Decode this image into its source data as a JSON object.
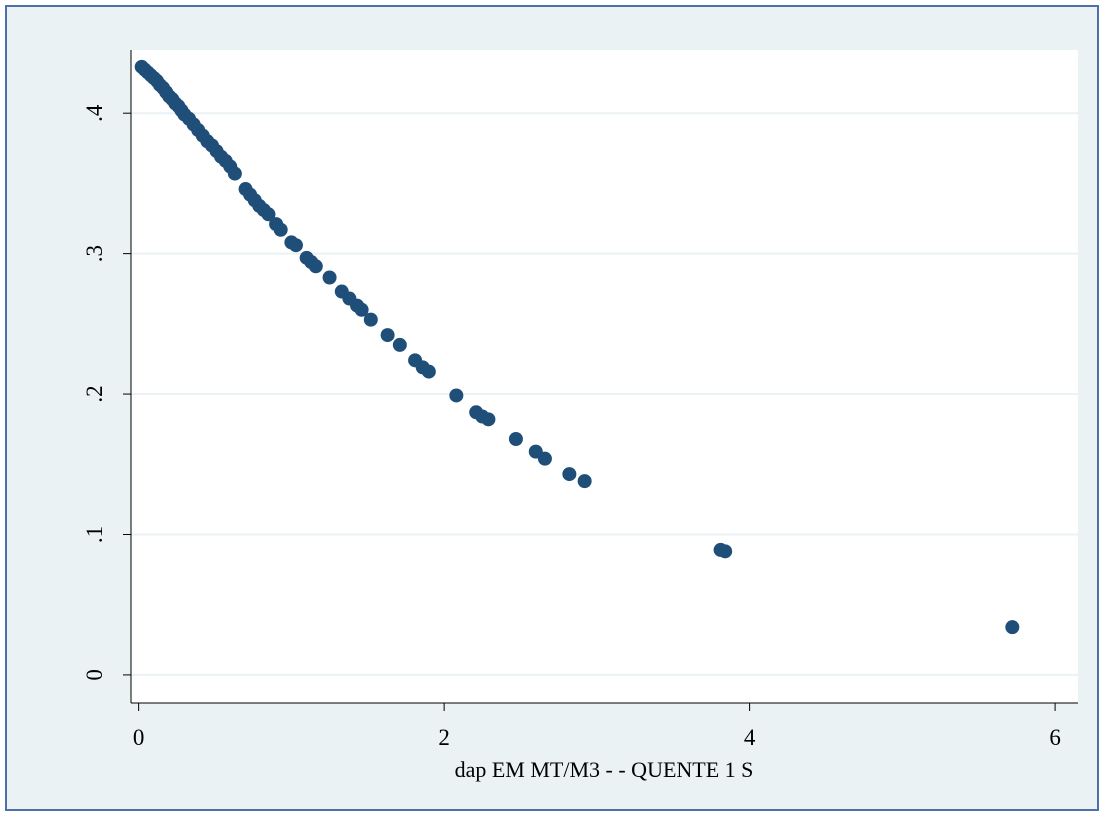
{
  "chart_data": {
    "type": "scatter",
    "title": "",
    "xlabel": "dap EM MT/M3 - - QUENTE 1 S",
    "ylabel": "",
    "xlim": [
      -0.05,
      6.15
    ],
    "ylim": [
      -0.02,
      0.445
    ],
    "x_ticks": [
      0,
      2,
      4,
      6
    ],
    "x_tick_labels": [
      "0",
      "2",
      "4",
      "6"
    ],
    "y_ticks": [
      0,
      0.1,
      0.2,
      0.3,
      0.4
    ],
    "y_tick_labels": [
      "0",
      ".1",
      ".2",
      ".3",
      ".4"
    ],
    "grid": true,
    "colors": {
      "marker": "#1f4e79",
      "grid": "#eaf2f3",
      "plot_bg": "#ffffff",
      "frame_bg": "#eaf2f3",
      "border": "#4f6fa8"
    },
    "series": [
      {
        "points": [
          [
            0.02,
            0.433
          ],
          [
            0.04,
            0.431
          ],
          [
            0.06,
            0.429
          ],
          [
            0.08,
            0.427
          ],
          [
            0.1,
            0.425
          ],
          [
            0.12,
            0.423
          ],
          [
            0.14,
            0.42
          ],
          [
            0.16,
            0.418
          ],
          [
            0.18,
            0.415
          ],
          [
            0.2,
            0.412
          ],
          [
            0.22,
            0.41
          ],
          [
            0.24,
            0.407
          ],
          [
            0.26,
            0.405
          ],
          [
            0.28,
            0.402
          ],
          [
            0.3,
            0.399
          ],
          [
            0.33,
            0.396
          ],
          [
            0.36,
            0.392
          ],
          [
            0.39,
            0.388
          ],
          [
            0.42,
            0.384
          ],
          [
            0.45,
            0.38
          ],
          [
            0.48,
            0.377
          ],
          [
            0.51,
            0.373
          ],
          [
            0.54,
            0.369
          ],
          [
            0.57,
            0.366
          ],
          [
            0.6,
            0.362
          ],
          [
            0.63,
            0.357
          ],
          [
            0.7,
            0.346
          ],
          [
            0.73,
            0.342
          ],
          [
            0.76,
            0.338
          ],
          [
            0.79,
            0.334
          ],
          [
            0.82,
            0.331
          ],
          [
            0.85,
            0.328
          ],
          [
            0.9,
            0.321
          ],
          [
            0.93,
            0.317
          ],
          [
            1.0,
            0.308
          ],
          [
            1.03,
            0.306
          ],
          [
            1.1,
            0.297
          ],
          [
            1.13,
            0.294
          ],
          [
            1.16,
            0.291
          ],
          [
            1.25,
            0.283
          ],
          [
            1.33,
            0.273
          ],
          [
            1.38,
            0.268
          ],
          [
            1.43,
            0.263
          ],
          [
            1.46,
            0.26
          ],
          [
            1.52,
            0.253
          ],
          [
            1.63,
            0.242
          ],
          [
            1.71,
            0.235
          ],
          [
            1.81,
            0.224
          ],
          [
            1.86,
            0.219
          ],
          [
            1.9,
            0.216
          ],
          [
            2.08,
            0.199
          ],
          [
            2.21,
            0.187
          ],
          [
            2.25,
            0.184
          ],
          [
            2.29,
            0.182
          ],
          [
            2.47,
            0.168
          ],
          [
            2.6,
            0.159
          ],
          [
            2.66,
            0.154
          ],
          [
            2.82,
            0.143
          ],
          [
            2.92,
            0.138
          ],
          [
            3.81,
            0.089
          ],
          [
            3.84,
            0.088
          ],
          [
            5.72,
            0.034
          ]
        ]
      }
    ]
  }
}
